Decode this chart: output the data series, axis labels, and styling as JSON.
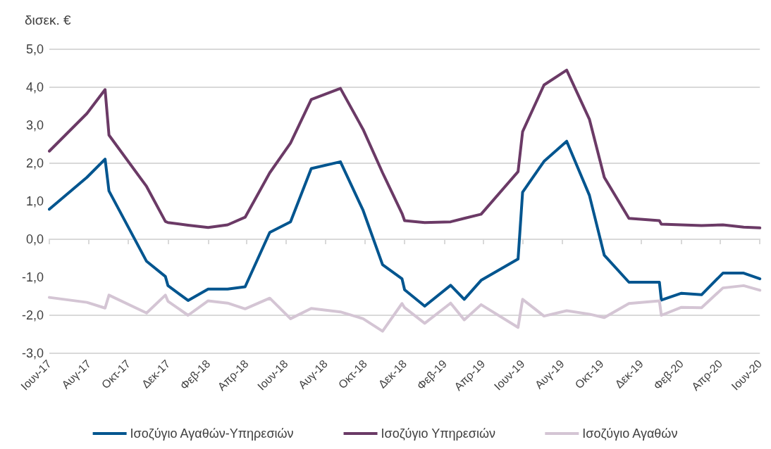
{
  "chart_data": {
    "type": "line",
    "ylabel": "δισεκ. €",
    "x": [
      "2017-06-01",
      "2017-07-29",
      "2017-08-26",
      "2017-09-01",
      "2017-10-29",
      "2017-11-27",
      "2017-12-01",
      "2018-01-01",
      "2018-02-01",
      "2018-03-03",
      "2018-03-30",
      "2018-05-07",
      "2018-06-08",
      "2018-07-10",
      "2018-08-24",
      "2018-09-28",
      "2018-10-28",
      "2018-11-27",
      "2018-12-01",
      "2019-01-01",
      "2019-02-10",
      "2019-03-03",
      "2019-03-29",
      "2019-05-25",
      "2019-06-01",
      "2019-07-04",
      "2019-08-08",
      "2019-09-12",
      "2019-10-05",
      "2019-11-12",
      "2019-12-29",
      "2020-01-01",
      "2020-02-01",
      "2020-03-03",
      "2020-04-05",
      "2020-05-07",
      "2020-06-01"
    ],
    "series": [
      {
        "name": "Ισοζύγιο Αγαθών-Υπηρεσιών",
        "color": "#00558f",
        "values": [
          0.79,
          1.63,
          2.11,
          1.27,
          -0.58,
          -0.98,
          -1.22,
          -1.61,
          -1.31,
          -1.31,
          -1.25,
          0.18,
          0.46,
          1.86,
          2.04,
          0.76,
          -0.67,
          -1.04,
          -1.33,
          -1.76,
          -1.21,
          -1.58,
          -1.08,
          -0.52,
          1.24,
          2.05,
          2.58,
          1.16,
          -0.42,
          -1.13,
          -1.13,
          -1.6,
          -1.42,
          -1.46,
          -0.89,
          -0.89,
          -1.04
        ]
      },
      {
        "name": "Ισοζύγιο Υπηρεσιών",
        "color": "#6b3a66",
        "values": [
          2.32,
          3.31,
          3.94,
          2.74,
          1.39,
          0.47,
          0.44,
          0.37,
          0.31,
          0.38,
          0.58,
          1.75,
          2.53,
          3.68,
          3.97,
          2.89,
          1.75,
          0.68,
          0.49,
          0.44,
          0.46,
          0.55,
          0.66,
          1.78,
          2.83,
          4.06,
          4.45,
          3.16,
          1.63,
          0.55,
          0.49,
          0.4,
          0.38,
          0.36,
          0.38,
          0.32,
          0.3
        ]
      },
      {
        "name": "Ισοζύγιο Αγαθών",
        "color": "#d4c5d4",
        "values": [
          -1.53,
          -1.66,
          -1.81,
          -1.47,
          -1.94,
          -1.47,
          -1.63,
          -2.0,
          -1.62,
          -1.68,
          -1.83,
          -1.55,
          -2.09,
          -1.82,
          -1.91,
          -2.09,
          -2.42,
          -1.69,
          -1.8,
          -2.21,
          -1.68,
          -2.12,
          -1.72,
          -2.32,
          -1.58,
          -2.02,
          -1.88,
          -1.97,
          -2.06,
          -1.69,
          -1.62,
          -2.0,
          -1.79,
          -1.8,
          -1.28,
          -1.22,
          -1.34
        ]
      }
    ],
    "xlim": [
      "2017-06-01",
      "2020-06-01"
    ],
    "xticks": [
      {
        "value": "2017-06-01",
        "label": "Ιουν-17"
      },
      {
        "value": "2017-08-01",
        "label": "Αυγ-17"
      },
      {
        "value": "2017-10-01",
        "label": "Οκτ-17"
      },
      {
        "value": "2017-12-01",
        "label": "Δεκ-17"
      },
      {
        "value": "2018-02-01",
        "label": "Φεβ-18"
      },
      {
        "value": "2018-04-01",
        "label": "Απρ-18"
      },
      {
        "value": "2018-06-01",
        "label": "Ιουν-18"
      },
      {
        "value": "2018-08-01",
        "label": "Αυγ-18"
      },
      {
        "value": "2018-10-01",
        "label": "Οκτ-18"
      },
      {
        "value": "2018-12-01",
        "label": "Δεκ-18"
      },
      {
        "value": "2019-02-01",
        "label": "Φεβ-19"
      },
      {
        "value": "2019-04-01",
        "label": "Απρ-19"
      },
      {
        "value": "2019-06-01",
        "label": "Ιουν-19"
      },
      {
        "value": "2019-08-01",
        "label": "Αυγ-19"
      },
      {
        "value": "2019-10-01",
        "label": "Οκτ-19"
      },
      {
        "value": "2019-12-01",
        "label": "Δεκ-19"
      },
      {
        "value": "2020-02-01",
        "label": "Φεβ-20"
      },
      {
        "value": "2020-04-01",
        "label": "Απρ-20"
      },
      {
        "value": "2020-06-01",
        "label": "Ιουν-20"
      }
    ],
    "ylim": [
      -3,
      5
    ],
    "yticks": [
      {
        "value": -3,
        "label": "-3,0"
      },
      {
        "value": -2,
        "label": "-2,0"
      },
      {
        "value": -1,
        "label": "-1,0"
      },
      {
        "value": 0,
        "label": "0,0"
      },
      {
        "value": 1,
        "label": "1,0"
      },
      {
        "value": 2,
        "label": "2,0"
      },
      {
        "value": 3,
        "label": "3,0"
      },
      {
        "value": 4,
        "label": "4,0"
      },
      {
        "value": 5,
        "label": "5,0"
      }
    ],
    "grid": "y",
    "legend": "bottom",
    "marker": "none",
    "line_style": "solid"
  }
}
